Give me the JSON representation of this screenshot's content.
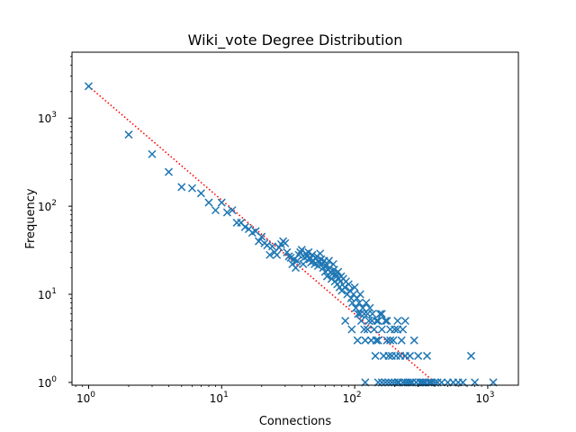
{
  "chart_data": {
    "type": "scatter",
    "title": "Wiki_vote Degree Distribution",
    "xlabel": "Connections",
    "ylabel": "Frequency",
    "xscale": "log",
    "yscale": "log",
    "xlim": [
      0.75,
      1700
    ],
    "ylim": [
      0.93,
      5600
    ],
    "grid": false,
    "marker": "x",
    "x_ticks": [
      {
        "value": 1,
        "base": "10",
        "exp": "0"
      },
      {
        "value": 10,
        "base": "10",
        "exp": "1"
      },
      {
        "value": 100,
        "base": "10",
        "exp": "2"
      },
      {
        "value": 1000,
        "base": "10",
        "exp": "3"
      }
    ],
    "y_ticks": [
      {
        "value": 1,
        "base": "10",
        "exp": "0"
      },
      {
        "value": 10,
        "base": "10",
        "exp": "1"
      },
      {
        "value": 100,
        "base": "10",
        "exp": "2"
      },
      {
        "value": 1000,
        "base": "10",
        "exp": "3"
      }
    ],
    "points": [
      [
        1,
        2300
      ],
      [
        2,
        650
      ],
      [
        3,
        390
      ],
      [
        4,
        245
      ],
      [
        5,
        165
      ],
      [
        6,
        160
      ],
      [
        7,
        140
      ],
      [
        8,
        110
      ],
      [
        9,
        90
      ],
      [
        10,
        110
      ],
      [
        11,
        85
      ],
      [
        12,
        90
      ],
      [
        13,
        65
      ],
      [
        14,
        65
      ],
      [
        15,
        58
      ],
      [
        16,
        55
      ],
      [
        17,
        50
      ],
      [
        18,
        52
      ],
      [
        19,
        40
      ],
      [
        20,
        45
      ],
      [
        21,
        38
      ],
      [
        22,
        36
      ],
      [
        23,
        28
      ],
      [
        24,
        35
      ],
      [
        25,
        30
      ],
      [
        26,
        28
      ],
      [
        27,
        34
      ],
      [
        28,
        37
      ],
      [
        29,
        40
      ],
      [
        30,
        38
      ],
      [
        31,
        30
      ],
      [
        32,
        27
      ],
      [
        33,
        26
      ],
      [
        34,
        22
      ],
      [
        35,
        25
      ],
      [
        36,
        20
      ],
      [
        37,
        24
      ],
      [
        38,
        28
      ],
      [
        39,
        30
      ],
      [
        40,
        32
      ],
      [
        41,
        22
      ],
      [
        42,
        26
      ],
      [
        43,
        29
      ],
      [
        44,
        27
      ],
      [
        45,
        30
      ],
      [
        46,
        25
      ],
      [
        47,
        23
      ],
      [
        48,
        28
      ],
      [
        49,
        24
      ],
      [
        50,
        22
      ],
      [
        51,
        26
      ],
      [
        52,
        27
      ],
      [
        53,
        21
      ],
      [
        54,
        23
      ],
      [
        55,
        29
      ],
      [
        56,
        25
      ],
      [
        57,
        22
      ],
      [
        58,
        20
      ],
      [
        59,
        24
      ],
      [
        60,
        18
      ],
      [
        61,
        21
      ],
      [
        62,
        16
      ],
      [
        63,
        19
      ],
      [
        64,
        24
      ],
      [
        65,
        20
      ],
      [
        66,
        18
      ],
      [
        67,
        15
      ],
      [
        68,
        17
      ],
      [
        69,
        22
      ],
      [
        70,
        19
      ],
      [
        71,
        14
      ],
      [
        72,
        17
      ],
      [
        73,
        16
      ],
      [
        74,
        13
      ],
      [
        75,
        18
      ],
      [
        76,
        15
      ],
      [
        77,
        12
      ],
      [
        78,
        14
      ],
      [
        79,
        16
      ],
      [
        80,
        11
      ],
      [
        82,
        15
      ],
      [
        84,
        12
      ],
      [
        86,
        14
      ],
      [
        88,
        10
      ],
      [
        90,
        13
      ],
      [
        92,
        11
      ],
      [
        94,
        9
      ],
      [
        96,
        8
      ],
      [
        98,
        10
      ],
      [
        100,
        12
      ],
      [
        102,
        7
      ],
      [
        104,
        9
      ],
      [
        106,
        6
      ],
      [
        108,
        8
      ],
      [
        110,
        10
      ],
      [
        112,
        5
      ],
      [
        115,
        7
      ],
      [
        118,
        6
      ],
      [
        120,
        3
      ],
      [
        122,
        8
      ],
      [
        125,
        4
      ],
      [
        128,
        5
      ],
      [
        130,
        7
      ],
      [
        133,
        3
      ],
      [
        136,
        6
      ],
      [
        140,
        4
      ],
      [
        143,
        2
      ],
      [
        146,
        5
      ],
      [
        150,
        3
      ],
      [
        155,
        6
      ],
      [
        160,
        4
      ],
      [
        165,
        2
      ],
      [
        170,
        5
      ],
      [
        175,
        3
      ],
      [
        180,
        2
      ],
      [
        185,
        4
      ],
      [
        190,
        2
      ],
      [
        195,
        3
      ],
      [
        200,
        1
      ],
      [
        205,
        2
      ],
      [
        210,
        4
      ],
      [
        215,
        1
      ],
      [
        220,
        2
      ],
      [
        225,
        3
      ],
      [
        230,
        1
      ],
      [
        240,
        2
      ],
      [
        250,
        1
      ],
      [
        260,
        2
      ],
      [
        270,
        1
      ],
      [
        280,
        3
      ],
      [
        290,
        1
      ],
      [
        300,
        2
      ],
      [
        310,
        1
      ],
      [
        330,
        1
      ],
      [
        350,
        2
      ],
      [
        370,
        1
      ],
      [
        400,
        1
      ],
      [
        420,
        1
      ],
      [
        450,
        1
      ],
      [
        500,
        1
      ],
      [
        550,
        1
      ],
      [
        600,
        1
      ],
      [
        650,
        1
      ],
      [
        750,
        2
      ],
      [
        800,
        1
      ],
      [
        1100,
        1
      ],
      [
        85,
        5
      ],
      [
        95,
        4
      ],
      [
        105,
        3
      ],
      [
        110,
        6
      ],
      [
        118,
        4
      ],
      [
        125,
        6
      ],
      [
        135,
        5
      ],
      [
        145,
        3
      ],
      [
        150,
        5
      ],
      [
        160,
        6
      ],
      [
        175,
        5
      ],
      [
        185,
        3
      ],
      [
        200,
        4
      ],
      [
        210,
        5
      ],
      [
        230,
        4
      ],
      [
        240,
        5
      ],
      [
        180,
        1
      ],
      [
        190,
        1
      ],
      [
        210,
        1
      ],
      [
        240,
        1
      ],
      [
        260,
        1
      ],
      [
        270,
        1
      ],
      [
        290,
        1
      ],
      [
        310,
        1
      ],
      [
        320,
        1
      ],
      [
        340,
        1
      ],
      [
        360,
        1
      ],
      [
        380,
        1
      ],
      [
        120,
        1
      ],
      [
        170,
        1
      ],
      [
        160,
        1
      ],
      [
        150,
        1
      ]
    ],
    "fit_line": {
      "style": "dotted",
      "x_start": 1,
      "y_start": 2300,
      "x_end": 400,
      "y_end": 1
    },
    "colors": {
      "marker": "#1f77b4",
      "fit_line": "#ff0000",
      "axes": "#000000",
      "background": "#ffffff"
    }
  }
}
